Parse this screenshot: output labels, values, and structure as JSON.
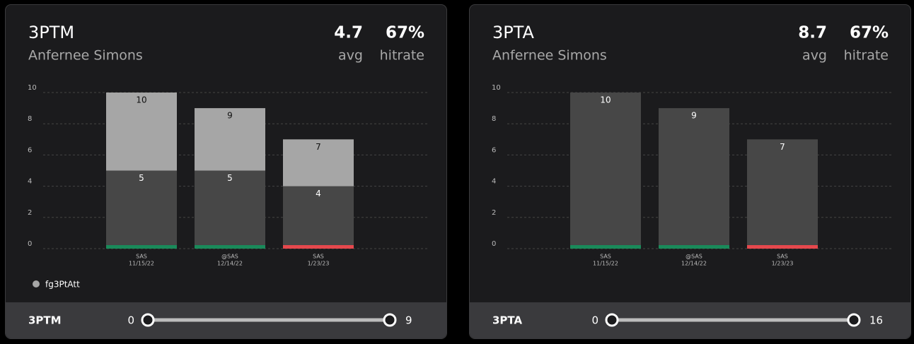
{
  "chart_data": [
    {
      "type": "bar",
      "title": "3PTM",
      "subtitle": "Anfernee Simons",
      "stats": [
        {
          "value": "4.7",
          "label": "avg"
        },
        {
          "value": "67%",
          "label": "hitrate"
        }
      ],
      "categories": [
        "SAS",
        "@SAS",
        "SAS"
      ],
      "dates": [
        "11/15/22",
        "12/14/22",
        "1/23/23"
      ],
      "series": [
        {
          "name": "fg3PtAtt",
          "color": "#a6a6a6",
          "values": [
            10,
            9,
            7
          ]
        },
        {
          "color": "#474747",
          "values": [
            5,
            5,
            4
          ]
        }
      ],
      "result_colors": [
        "#1a8a5a",
        "#1a8a5a",
        "#e5484d"
      ],
      "ylim": [
        0,
        10
      ],
      "yticks": [
        0,
        2,
        4,
        6,
        8,
        10
      ],
      "grid": true,
      "slider": {
        "label": "3PTM",
        "min": 0,
        "max": 9
      }
    },
    {
      "type": "bar",
      "title": "3PTA",
      "subtitle": "Anfernee Simons",
      "stats": [
        {
          "value": "8.7",
          "label": "avg"
        },
        {
          "value": "67%",
          "label": "hitrate"
        }
      ],
      "categories": [
        "SAS",
        "@SAS",
        "SAS"
      ],
      "dates": [
        "11/15/22",
        "12/14/22",
        "1/23/23"
      ],
      "series": [
        {
          "color": "#474747",
          "values": [
            10,
            9,
            7
          ]
        }
      ],
      "result_colors": [
        "#1a8a5a",
        "#1a8a5a",
        "#e5484d"
      ],
      "ylim": [
        0,
        10
      ],
      "yticks": [
        0,
        2,
        4,
        6,
        8,
        10
      ],
      "grid": true,
      "slider": {
        "label": "3PTA",
        "min": 0,
        "max": 16
      }
    }
  ]
}
